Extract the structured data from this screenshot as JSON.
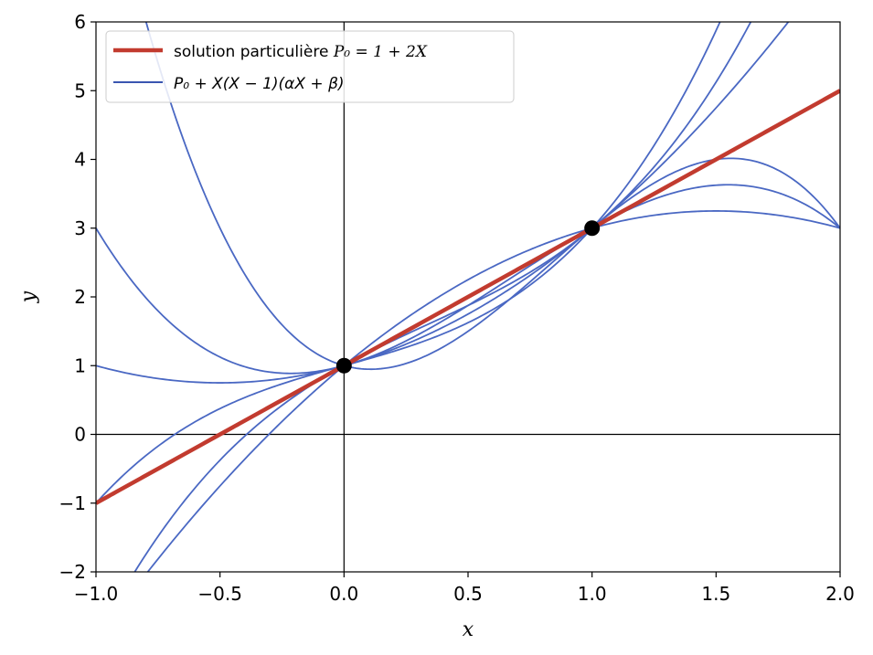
{
  "chart_data": {
    "type": "line",
    "title": "",
    "xlabel": "x",
    "ylabel": "y",
    "xlim": [
      -1.0,
      2.0
    ],
    "ylim": [
      -2,
      6
    ],
    "grid": false,
    "legend_position": "top-left",
    "x_ticks": [
      -1.0,
      -0.5,
      0.0,
      0.5,
      1.0,
      1.5,
      2.0
    ],
    "x_tick_labels": [
      "−1.0",
      "−0.5",
      "0.0",
      "0.5",
      "1.0",
      "1.5",
      "2.0"
    ],
    "y_ticks": [
      -2,
      -1,
      0,
      1,
      2,
      3,
      4,
      5,
      6
    ],
    "y_tick_labels": [
      "−2",
      "−1",
      "0",
      "1",
      "2",
      "3",
      "4",
      "5",
      "6"
    ],
    "reference_lines": {
      "x": 0,
      "y": 0
    },
    "series": [
      {
        "name": "solution particulière P₀ = 1 + 2X",
        "kind": "particular",
        "color": "#c23b2f",
        "formula": {
          "alpha": 0,
          "beta": 0
        }
      },
      {
        "name": "P₀ + X(X − 1)(αX + β)",
        "kind": "family",
        "color": "#4a68c3",
        "members": [
          {
            "alpha": -2,
            "beta": 3
          },
          {
            "alpha": -1,
            "beta": 1
          },
          {
            "alpha": 0,
            "beta": 1
          },
          {
            "alpha": 0,
            "beta": -1
          },
          {
            "alpha": 1,
            "beta": 0
          },
          {
            "alpha": 1,
            "beta": 1
          }
        ]
      }
    ],
    "points": [
      {
        "x": 0,
        "y": 1
      },
      {
        "x": 1,
        "y": 3
      }
    ],
    "legend": [
      {
        "label_text": "solution particulière ",
        "label_math": "P₀ = 1 + 2X",
        "color": "#c23b2f"
      },
      {
        "label_math": "P₀ + X(X − 1)(αX + β)",
        "color": "#3a56b0"
      }
    ]
  }
}
